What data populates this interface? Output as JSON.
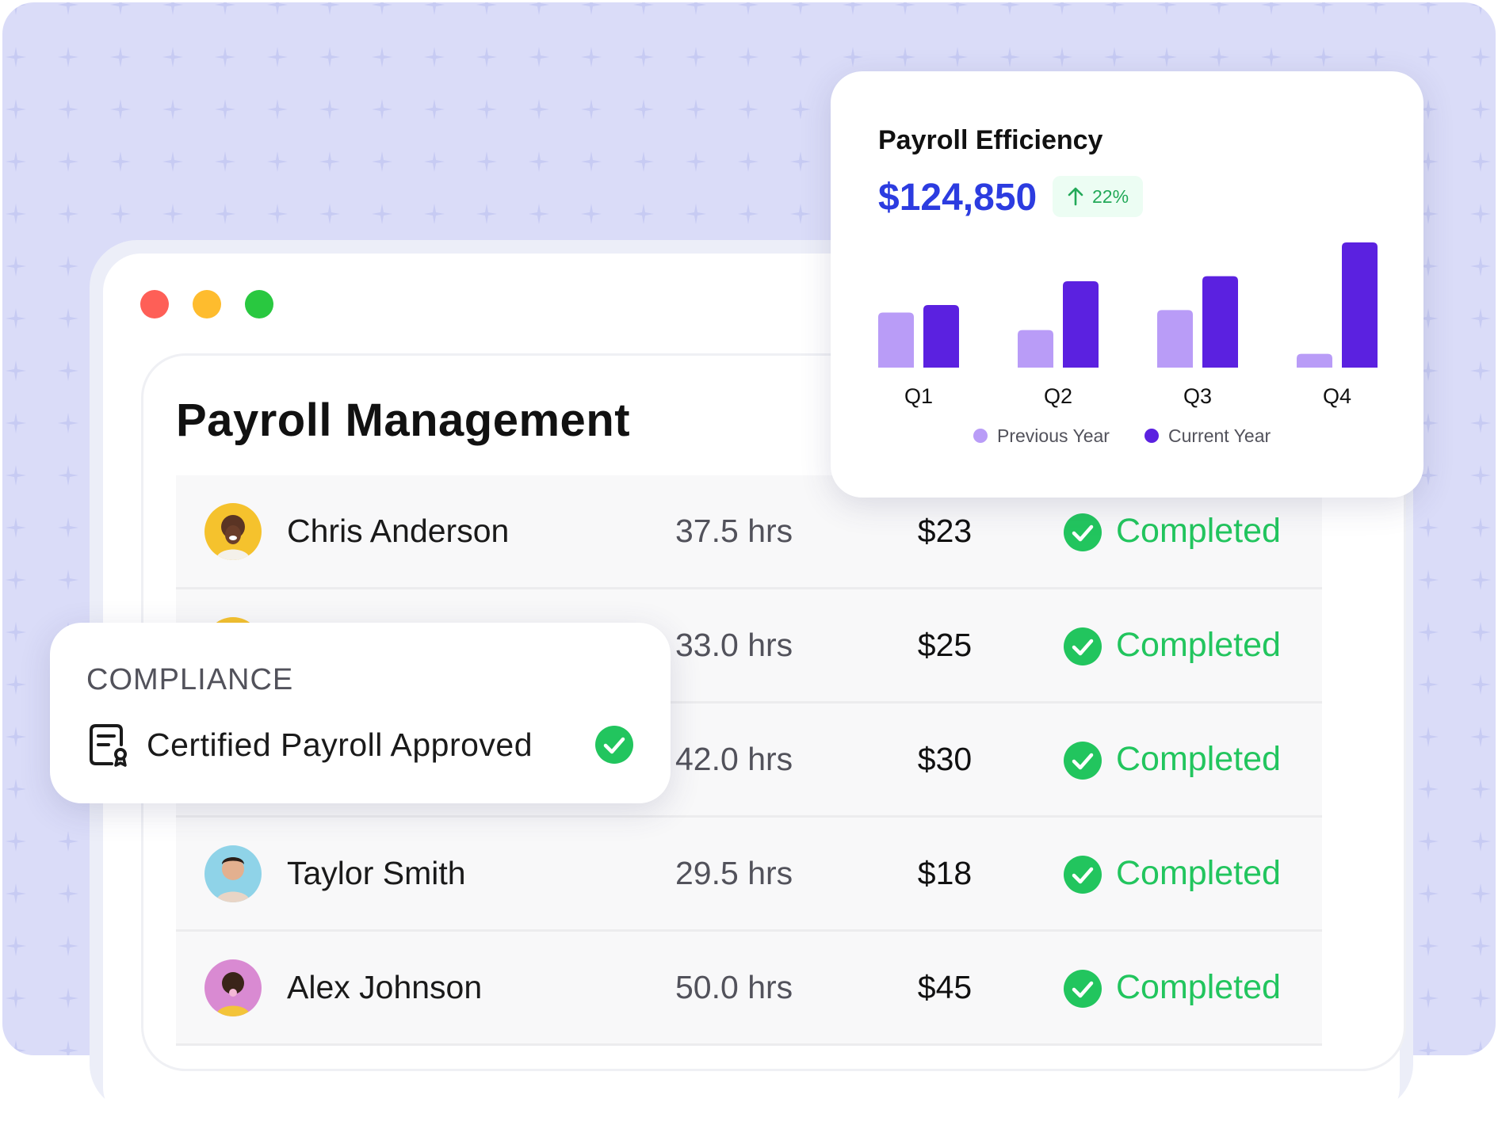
{
  "window": {
    "controls": [
      "close",
      "minimize",
      "maximize"
    ]
  },
  "page": {
    "title": "Payroll Management"
  },
  "employees": [
    {
      "name": "Chris Anderson",
      "hours": "37.5 hrs",
      "rate": "$23",
      "status": "Completed",
      "avatar_color": "#f5c22d"
    },
    {
      "name": "",
      "hours": "33.0 hrs",
      "rate": "$25",
      "status": "Completed",
      "avatar_color": "#f5c22d"
    },
    {
      "name": "",
      "hours": "42.0 hrs",
      "rate": "$30",
      "status": "Completed",
      "avatar_color": "#c9c9d1"
    },
    {
      "name": "Taylor Smith",
      "hours": "29.5 hrs",
      "rate": "$18",
      "status": "Completed",
      "avatar_color": "#8fd3e8"
    },
    {
      "name": "Alex Johnson",
      "hours": "50.0 hrs",
      "rate": "$45",
      "status": "Completed",
      "avatar_color": "#d98ad2"
    }
  ],
  "compliance": {
    "label": "COMPLIANCE",
    "text": "Certified Payroll Approved",
    "icon": "certificate-document-icon",
    "status_icon": "check-circle-icon"
  },
  "efficiency": {
    "title": "Payroll Efficiency",
    "value": "$124,850",
    "change": "22%",
    "change_icon": "arrow-up-icon"
  },
  "colors": {
    "accent_blue": "#2c3ce0",
    "success_green": "#22c55e",
    "previous_year": "#b99cf7",
    "current_year": "#5b21e0"
  },
  "chart_data": {
    "type": "bar",
    "categories": [
      "Q1",
      "Q2",
      "Q3",
      "Q4"
    ],
    "series": [
      {
        "name": "Previous Year",
        "values": [
          44,
          30,
          46,
          11
        ]
      },
      {
        "name": "Current Year",
        "values": [
          50,
          69,
          73,
          100
        ]
      }
    ],
    "ylim": [
      0,
      100
    ],
    "legend": "bottom"
  }
}
